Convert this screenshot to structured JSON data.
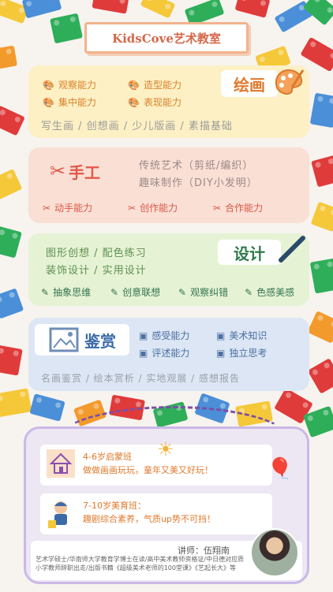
{
  "header": {
    "title": "KidsCove艺术教室"
  },
  "colors": {
    "paint_panel": "#fdf0c4",
    "craft_panel": "#fadfd4",
    "design_panel": "#e5f3d4",
    "appreciation_panel": "#dce6f4",
    "accent": "#e07a2e"
  },
  "painting": {
    "tag": "绘画",
    "skills": [
      "观察能力",
      "造型能力",
      "集中能力",
      "表现能力"
    ],
    "types": "写生画 / 创想画 / 少儿版画 / 素描基础",
    "icon": "palette-icon"
  },
  "craft": {
    "tag": "手工",
    "line1": "传统艺术（剪纸/编织）",
    "line2": "趣味制作（DIY小发明）",
    "skills": [
      "动手能力",
      "创作能力",
      "合作能力"
    ],
    "icon": "scissors-icon"
  },
  "design": {
    "tag": "设计",
    "line1": "图形创想 / 配色练习",
    "line2": "装饰设计 / 实用设计",
    "skills": [
      "抽象思维",
      "创意联想",
      "观察纠错",
      "色感美感"
    ],
    "icon": "pen-icon"
  },
  "appreciation": {
    "tag": "鉴赏",
    "skills": [
      "感受能力",
      "美术知识",
      "评述能力",
      "独立思考"
    ],
    "types": "名画鉴赏 / 绘本赏析 / 实地观展 / 感想报告",
    "icon": "frame-icon"
  },
  "classes": {
    "class1_title": "4-6岁启蒙班",
    "class1_desc": "做做画画玩玩，童年又美又好玩！",
    "class2_title": "7-10岁美育班：",
    "class2_desc": "趣剧综合素养，气质up势不可挡！"
  },
  "teacher": {
    "name": "讲师：伍翔南",
    "bio": "艺术学硕士/华南师大学教育学博士在读/高中美术教师资格证/中日德对应质小学教师辞职出走/出版书籍《超级美术老师的100堂课》《艺起长大》等"
  }
}
